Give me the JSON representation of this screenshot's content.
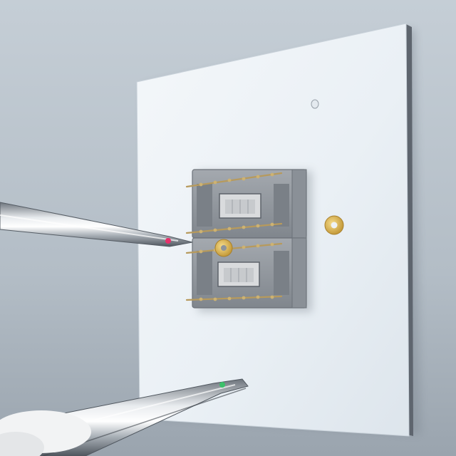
{
  "scene": {
    "subject": "ceramic-test-board-with-chip-sockets",
    "colors": {
      "background_top": "#c2cbd3",
      "background_bottom": "#9ea8b2",
      "board_face": "#eef3f7",
      "board_shadow_edge": "#5f6670",
      "socket_body": "#8e949b",
      "socket_highlight": "#a9aeb4",
      "window_fill": "#d6d8da",
      "pin_gold": "#b79a5c",
      "washer_gold": "#d8b254",
      "tweezer_steel": "#c9ced4",
      "tweezer_dark": "#4b525a",
      "tip_red": "#e8306b",
      "tip_green": "#3cc06a",
      "glove_white": "#f2f3f4"
    },
    "objects": [
      "ceramic-board",
      "chip-socket-upper",
      "chip-socket-lower",
      "gold-washer-right",
      "gold-washer-held",
      "tweezers-upper",
      "tweezers-lower",
      "gloved-hand"
    ]
  }
}
